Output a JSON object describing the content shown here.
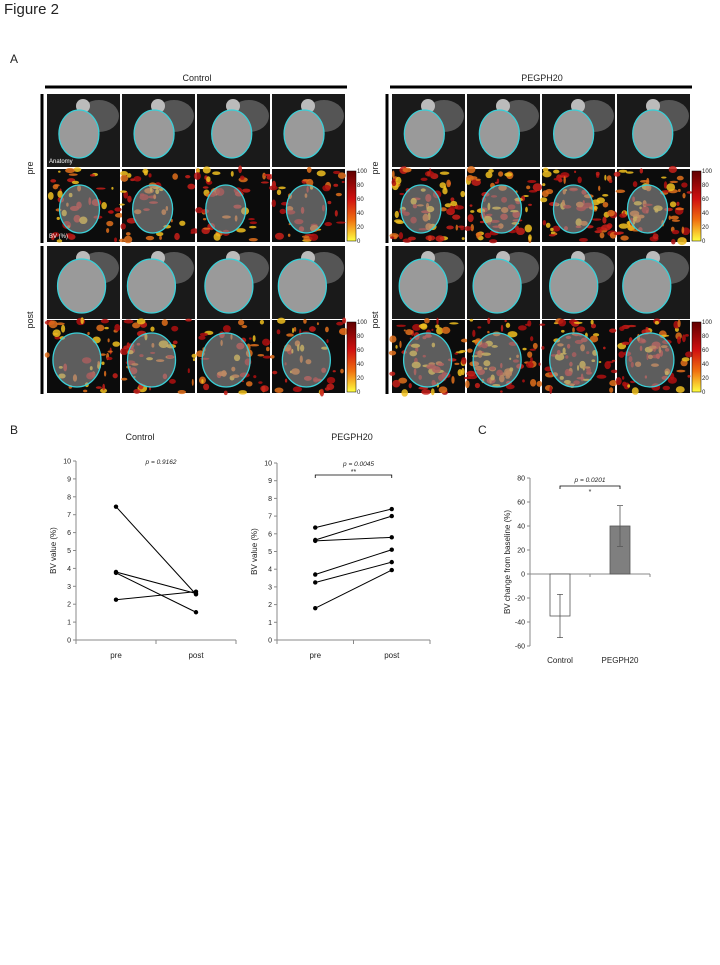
{
  "figure_title": "Figure 2",
  "panel_a": {
    "label": "A",
    "groups": [
      "Control",
      "PEGPH20"
    ],
    "rows": [
      "pre",
      "post"
    ],
    "image_labels": [
      "Anatomy",
      "BV (%)"
    ],
    "colorbar_ticks": [
      100,
      80,
      60,
      40,
      20,
      0
    ]
  },
  "panel_b_label": "B",
  "panel_c_label": "C",
  "chart_data": [
    {
      "type": "line",
      "title": "Control",
      "ylabel": "BV value (%)",
      "annotation": "p = 0.9162",
      "categories": [
        "pre",
        "post"
      ],
      "ylim": [
        0,
        10
      ],
      "yticks": [
        0,
        1,
        2,
        3,
        4,
        5,
        6,
        7,
        8,
        9,
        10
      ],
      "series": [
        {
          "color": "#000000",
          "values": [
            7.45,
            2.55
          ]
        },
        {
          "color": "#000000",
          "values": [
            3.8,
            2.6
          ]
        },
        {
          "color": "#000000",
          "values": [
            3.75,
            1.55
          ]
        },
        {
          "color": "#000000",
          "values": [
            2.25,
            2.7
          ]
        }
      ]
    },
    {
      "type": "line",
      "title": "PEGPH20",
      "ylabel": "BV value (%)",
      "annotation": "p = 0.0045",
      "significance": "**",
      "categories": [
        "pre",
        "post"
      ],
      "ylim": [
        0,
        10
      ],
      "yticks": [
        0,
        1,
        2,
        3,
        4,
        5,
        6,
        7,
        8,
        9,
        10
      ],
      "series": [
        {
          "color": "#000000",
          "values": [
            6.35,
            7.4
          ]
        },
        {
          "color": "#000000",
          "values": [
            5.65,
            7.0
          ]
        },
        {
          "color": "#000000",
          "values": [
            5.6,
            5.8
          ]
        },
        {
          "color": "#000000",
          "values": [
            3.7,
            5.1
          ]
        },
        {
          "color": "#000000",
          "values": [
            3.25,
            4.4
          ]
        },
        {
          "color": "#000000",
          "values": [
            1.8,
            3.95
          ]
        }
      ]
    },
    {
      "type": "bar",
      "ylabel": "BV change from baseline (%)",
      "annotation": "p = 0.0201",
      "significance": "*",
      "categories": [
        "Control",
        "PEGPH20"
      ],
      "values": [
        -35,
        40
      ],
      "errors": [
        18,
        17
      ],
      "colors": [
        "#ffffff",
        "#7f7f7f"
      ],
      "ylim": [
        -60,
        80
      ],
      "yticks": [
        -60,
        -40,
        -20,
        0,
        20,
        40,
        60,
        80
      ]
    }
  ]
}
